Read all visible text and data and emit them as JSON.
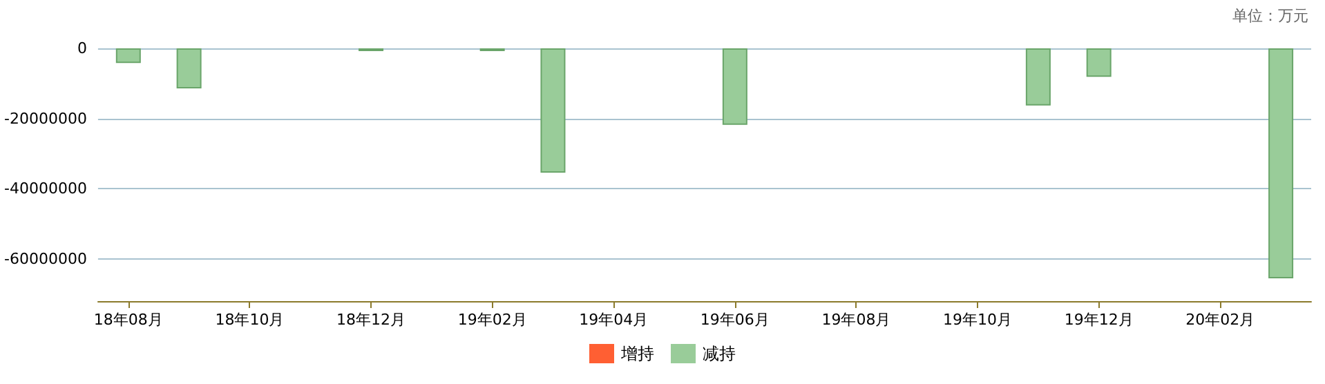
{
  "chart_data": {
    "type": "bar",
    "annotations": [
      "单位：万元"
    ],
    "categories": [
      "18年08月",
      null,
      "18年10月",
      null,
      "18年12月",
      null,
      "19年02月",
      null,
      "19年04月",
      null,
      "19年06月",
      null,
      "19年08月",
      null,
      "19年10月",
      null,
      "19年12月",
      null,
      "20年02月",
      null
    ],
    "series": [
      {
        "name": "增持",
        "color": "#ff5f33",
        "values": [
          null,
          null,
          null,
          null,
          null,
          null,
          null,
          null,
          null,
          null,
          null,
          null,
          null,
          null,
          null,
          null,
          null,
          null,
          null,
          null
        ]
      },
      {
        "name": "减持",
        "color": "#99cc99",
        "values": [
          -4200000,
          -11400000,
          null,
          null,
          -500000,
          null,
          -500000,
          -35400000,
          null,
          null,
          -21800000,
          null,
          null,
          null,
          null,
          -16300000,
          -8100000,
          null,
          null,
          -65500000
        ]
      }
    ],
    "ylim": [
      -72000000,
      0
    ],
    "yticks": [
      -60000000,
      -40000000,
      -20000000,
      0
    ],
    "grid": "y",
    "legend": "bottom"
  }
}
